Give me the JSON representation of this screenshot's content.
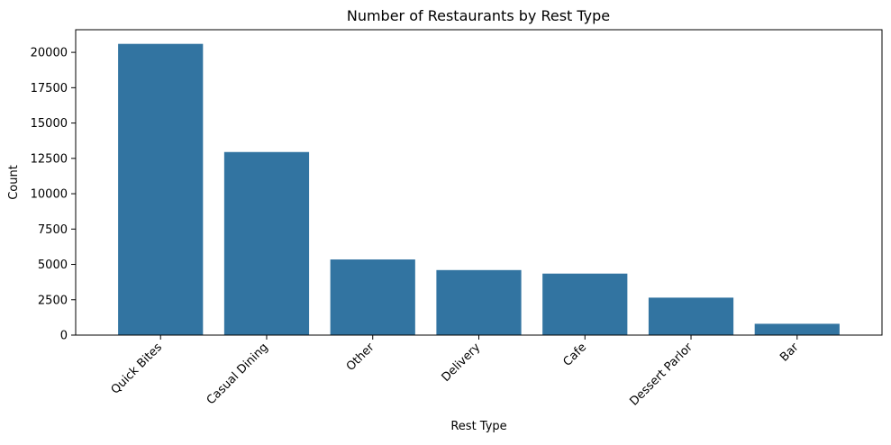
{
  "chart_data": {
    "type": "bar",
    "title": "Number of Restaurants by Rest Type",
    "xlabel": "Rest Type",
    "ylabel": "Count",
    "categories": [
      "Quick Bites",
      "Casual Dining",
      "Other",
      "Delivery",
      "Cafe",
      "Dessert Parlor",
      "Bar"
    ],
    "values": [
      20600,
      12950,
      5350,
      4600,
      4350,
      2650,
      800
    ],
    "yticks": [
      0,
      2500,
      5000,
      7500,
      10000,
      12500,
      15000,
      17500,
      20000
    ],
    "ylim": [
      0,
      21600
    ],
    "grid": false,
    "legend": "none",
    "bar_color": "#3274a1"
  }
}
